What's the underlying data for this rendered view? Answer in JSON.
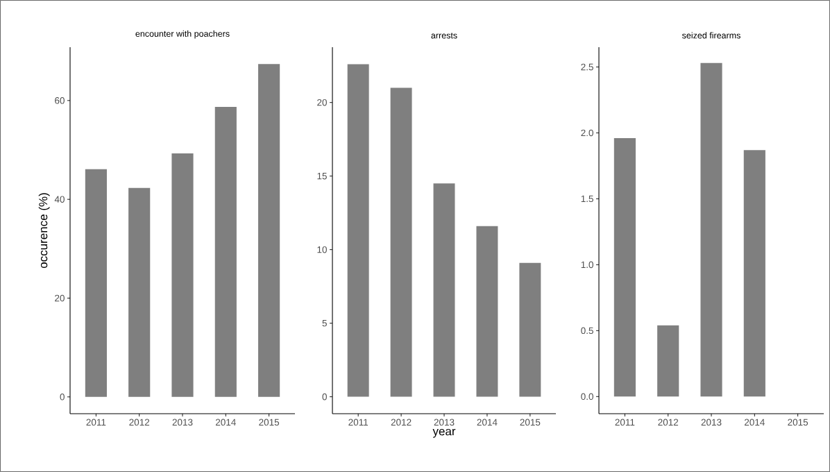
{
  "chart_data": [
    {
      "type": "bar",
      "title": "encounter with poachers",
      "ylabel": "occurence (%)",
      "categories": [
        "2011",
        "2012",
        "2013",
        "2014",
        "2015"
      ],
      "values": [
        46.1,
        42.3,
        49.3,
        58.7,
        67.4
      ],
      "color": "#7f7f7f",
      "ylim": [
        -3.4,
        70.8
      ],
      "yticks": [
        0,
        20,
        40,
        60
      ],
      "grid": false
    },
    {
      "type": "bar",
      "title": "arrests",
      "xlabel": "year",
      "categories": [
        "2011",
        "2012",
        "2013",
        "2014",
        "2015"
      ],
      "values": [
        22.6,
        21.0,
        14.5,
        11.6,
        9.1
      ],
      "color": "#7f7f7f",
      "ylim": [
        -1.15,
        23.76
      ],
      "yticks": [
        0,
        5,
        10,
        15,
        20
      ],
      "grid": false
    },
    {
      "type": "bar",
      "title": "seized firearms",
      "categories": [
        "2011",
        "2012",
        "2013",
        "2014",
        "2015"
      ],
      "values": [
        1.96,
        0.54,
        2.53,
        1.87,
        0
      ],
      "color": "#7f7f7f",
      "ylim": [
        -0.13,
        2.65
      ],
      "yticks": [
        {
          "value": 0,
          "label": "0.0"
        },
        {
          "value": 0.5,
          "label": "0.5"
        },
        {
          "value": 1,
          "label": "1.0"
        },
        {
          "value": 1.5,
          "label": "1.5"
        },
        {
          "value": 2,
          "label": "2.0"
        },
        {
          "value": 2.5,
          "label": "2.5"
        }
      ],
      "grid": false
    }
  ]
}
